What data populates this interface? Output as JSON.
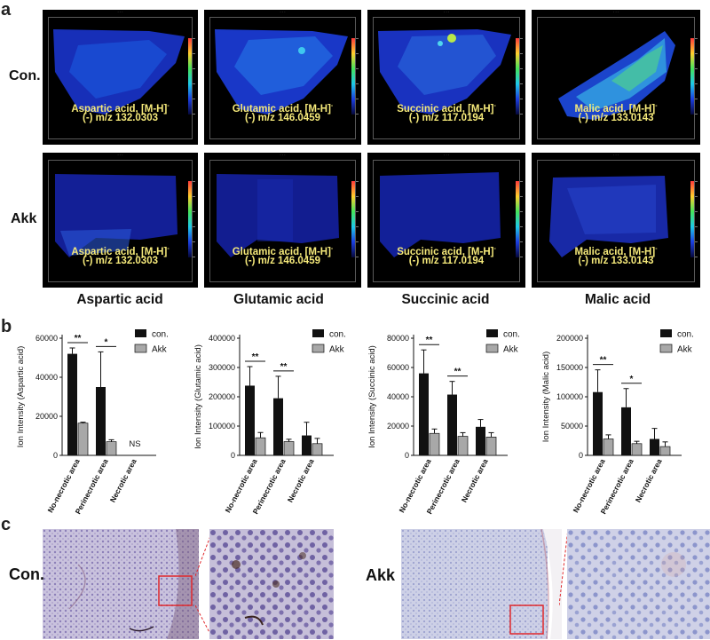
{
  "panels": {
    "a": "a",
    "b": "b",
    "c": "c"
  },
  "row_labels": {
    "con": "Con.",
    "akk": "Akk"
  },
  "columns": [
    {
      "name": "Aspartic acid",
      "cap1": "Aspartic acid, [M-H]",
      "cap2": "(-) m/z 132.0303"
    },
    {
      "name": "Glutamic acid",
      "cap1": "Glutamic acid, [M-H]",
      "cap2": "(-) m/z 146.0459"
    },
    {
      "name": "Succinic acid",
      "cap1": "Succinic acid, [M-H]",
      "cap2": "(-) m/z 117.0194"
    },
    {
      "name": "Malic acid",
      "cap1": "Malic acid, [M-H]",
      "cap2": "(-) m/z 133.0143"
    }
  ],
  "cap_sup": "-",
  "micro_labels": {
    "con": "Con.",
    "akk": "Akk"
  },
  "colors": {
    "con_bar": "#111111",
    "akk_bar": "#a8a8a8",
    "caption": "#f5e97a",
    "zoom_box": "#e0282c"
  },
  "chart_data": [
    {
      "type": "bar",
      "ylabel": "Ion Intensity (Aspartic acid)",
      "ylim": [
        0,
        60000
      ],
      "yticks": [
        "0",
        "20000",
        "40000",
        "60000"
      ],
      "categories": [
        "No-necrotic area",
        "Perinecrotic area",
        "Necrotic area"
      ],
      "legend": [
        "con.",
        "Akk"
      ],
      "series": [
        {
          "name": "con.",
          "values": [
            52000,
            35000,
            null
          ],
          "errors": [
            3000,
            18000,
            null
          ]
        },
        {
          "name": "Akk",
          "values": [
            16500,
            7000,
            null
          ],
          "errors": [
            500,
            1000,
            null
          ]
        }
      ],
      "annotations": [
        {
          "category": 0,
          "text": "**"
        },
        {
          "category": 1,
          "text": "*"
        },
        {
          "category": 2,
          "text": "NS"
        }
      ]
    },
    {
      "type": "bar",
      "ylabel": "Ion Intensity (Glutamic acid)",
      "ylim": [
        0,
        400000
      ],
      "yticks": [
        "0",
        "100000",
        "200000",
        "300000",
        "400000"
      ],
      "categories": [
        "No-necrotic area",
        "Perinecrotic area",
        "Necrotic area"
      ],
      "legend": [
        "con.",
        "Akk"
      ],
      "series": [
        {
          "name": "con.",
          "values": [
            238000,
            195000,
            68000
          ],
          "errors": [
            65000,
            75000,
            45000
          ]
        },
        {
          "name": "Akk",
          "values": [
            60000,
            47000,
            40000
          ],
          "errors": [
            18000,
            8000,
            18000
          ]
        }
      ],
      "annotations": [
        {
          "category": 0,
          "text": "**"
        },
        {
          "category": 1,
          "text": "**"
        }
      ]
    },
    {
      "type": "bar",
      "ylabel": "Ion Intensity (Succinic acid)",
      "ylim": [
        0,
        80000
      ],
      "yticks": [
        "0",
        "20000",
        "40000",
        "60000",
        "80000"
      ],
      "categories": [
        "No-necrotic area",
        "Perinecrotic area",
        "Necrotic area"
      ],
      "legend": [
        "con.",
        "Akk"
      ],
      "series": [
        {
          "name": "con.",
          "values": [
            56000,
            41500,
            19500
          ],
          "errors": [
            16000,
            9000,
            5000
          ]
        },
        {
          "name": "Akk",
          "values": [
            15000,
            13000,
            12500
          ],
          "errors": [
            3000,
            2500,
            3000
          ]
        }
      ],
      "annotations": [
        {
          "category": 0,
          "text": "**"
        },
        {
          "category": 1,
          "text": "**"
        }
      ]
    },
    {
      "type": "bar",
      "ylabel": "Ion Intensity (Malic acid)",
      "ylim": [
        0,
        200000
      ],
      "yticks": [
        "0",
        "50000",
        "100000",
        "150000",
        "200000"
      ],
      "categories": [
        "No-necrotic area",
        "Perinecrotic area",
        "Necrotic area"
      ],
      "legend": [
        "con.",
        "Akk"
      ],
      "series": [
        {
          "name": "con.",
          "values": [
            108000,
            82000,
            28000
          ],
          "errors": [
            38000,
            32000,
            18000
          ]
        },
        {
          "name": "Akk",
          "values": [
            28000,
            20000,
            15000
          ],
          "errors": [
            7000,
            4000,
            8000
          ]
        }
      ],
      "annotations": [
        {
          "category": 0,
          "text": "**"
        },
        {
          "category": 1,
          "text": "*"
        }
      ]
    }
  ]
}
